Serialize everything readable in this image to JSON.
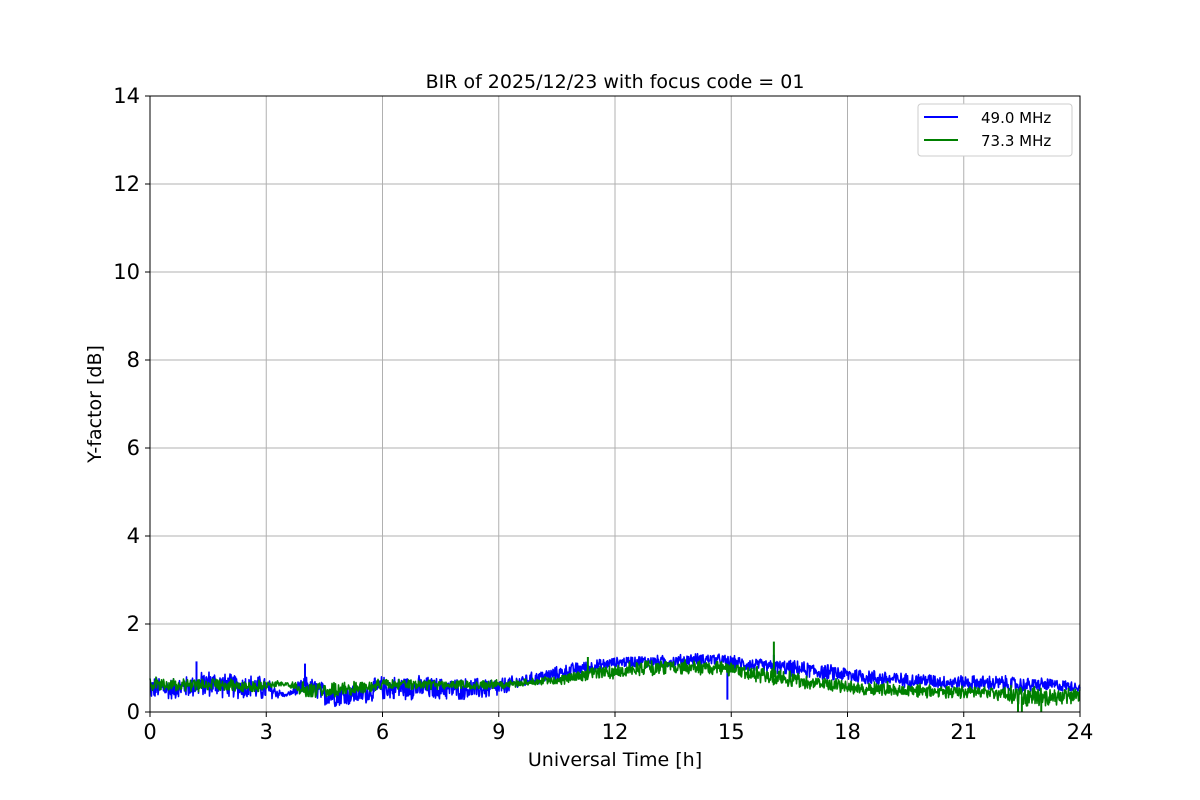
{
  "chart_data": {
    "type": "line",
    "title": "BIR of 2025/12/23 with focus code = 01",
    "xlabel": "Universal Time [h]",
    "ylabel": "Y-factor [dB]",
    "xlim": [
      0,
      24
    ],
    "ylim": [
      0,
      14
    ],
    "xticks": [
      0,
      3,
      6,
      9,
      12,
      15,
      18,
      21,
      24
    ],
    "yticks": [
      0,
      2,
      4,
      6,
      8,
      10,
      12,
      14
    ],
    "grid": true,
    "legend_position": "top-right",
    "series": [
      {
        "name": "49.0 MHz",
        "color": "#0000ff",
        "x": [
          0,
          0.5,
          1,
          1.5,
          2,
          2.5,
          3,
          3.5,
          4,
          4.5,
          5,
          5.5,
          6,
          6.5,
          7,
          7.5,
          8,
          8.5,
          9,
          9.5,
          10,
          10.5,
          11,
          11.5,
          12,
          12.5,
          13,
          13.5,
          14,
          14.5,
          15,
          15.5,
          16,
          16.5,
          17,
          17.5,
          18,
          18.5,
          19,
          19.5,
          20,
          20.5,
          21,
          21.5,
          22,
          22.5,
          23,
          23.5,
          24
        ],
        "y_min": [
          0.25,
          0.25,
          0.3,
          0.3,
          0.3,
          0.25,
          0.2,
          0.35,
          0.35,
          0.1,
          0.1,
          0.15,
          0.25,
          0.25,
          0.25,
          0.25,
          0.25,
          0.25,
          0.3,
          0.5,
          0.6,
          0.7,
          0.8,
          0.9,
          1.0,
          1.0,
          1.0,
          1.0,
          1.05,
          1.05,
          0.95,
          0.9,
          0.85,
          0.8,
          0.75,
          0.7,
          0.65,
          0.6,
          0.55,
          0.55,
          0.55,
          0.5,
          0.5,
          0.45,
          0.45,
          0.4,
          0.45,
          0.45,
          0.45
        ],
        "y_max": [
          0.85,
          0.8,
          0.85,
          1.0,
          0.9,
          0.9,
          0.85,
          0.4,
          0.85,
          0.7,
          0.65,
          0.7,
          0.85,
          0.85,
          0.85,
          0.8,
          0.8,
          0.8,
          0.8,
          0.85,
          0.95,
          1.05,
          1.15,
          1.2,
          1.25,
          1.3,
          1.3,
          1.3,
          1.35,
          1.35,
          1.3,
          1.25,
          1.2,
          1.2,
          1.15,
          1.1,
          1.05,
          1.0,
          0.95,
          0.9,
          0.9,
          0.85,
          0.85,
          0.85,
          0.85,
          0.8,
          0.8,
          0.75,
          0.7
        ],
        "outliers": [
          [
            1.2,
            1.15
          ],
          [
            4.0,
            1.1
          ],
          [
            14.9,
            0.28
          ],
          [
            16.1,
            1.3
          ]
        ]
      },
      {
        "name": "73.3 MHz",
        "color": "#008000",
        "x": [
          0,
          0.5,
          1,
          1.5,
          2,
          2.5,
          3,
          3.5,
          4,
          4.5,
          5,
          5.5,
          6,
          6.5,
          7,
          7.5,
          8,
          8.5,
          9,
          9.5,
          10,
          10.5,
          11,
          11.5,
          12,
          12.5,
          13,
          13.5,
          14,
          14.5,
          15,
          15.5,
          16,
          16.5,
          17,
          17.5,
          18,
          18.5,
          19,
          19.5,
          20,
          20.5,
          21,
          21.5,
          22,
          22.5,
          23,
          23.5,
          24
        ],
        "y_min": [
          0.45,
          0.45,
          0.45,
          0.45,
          0.45,
          0.45,
          0.45,
          0.6,
          0.3,
          0.3,
          0.3,
          0.4,
          0.5,
          0.5,
          0.5,
          0.5,
          0.5,
          0.5,
          0.5,
          0.55,
          0.6,
          0.6,
          0.65,
          0.7,
          0.75,
          0.8,
          0.8,
          0.85,
          0.85,
          0.8,
          0.75,
          0.7,
          0.6,
          0.55,
          0.5,
          0.45,
          0.4,
          0.35,
          0.35,
          0.35,
          0.3,
          0.3,
          0.3,
          0.3,
          0.25,
          0.1,
          0.1,
          0.1,
          0.1
        ],
        "y_max": [
          0.8,
          0.8,
          0.8,
          0.8,
          0.75,
          0.75,
          0.75,
          0.7,
          0.7,
          0.7,
          0.7,
          0.75,
          0.75,
          0.75,
          0.75,
          0.75,
          0.75,
          0.75,
          0.75,
          0.75,
          0.8,
          0.85,
          0.95,
          1.05,
          1.1,
          1.15,
          1.2,
          1.2,
          1.2,
          1.2,
          1.15,
          1.05,
          1.0,
          0.95,
          0.85,
          0.8,
          0.75,
          0.7,
          0.7,
          0.65,
          0.65,
          0.65,
          0.6,
          0.6,
          0.6,
          0.6,
          0.6,
          0.55,
          0.55
        ],
        "outliers": [
          [
            11.3,
            1.25
          ],
          [
            16.1,
            1.6
          ],
          [
            22.4,
            0.0
          ],
          [
            22.5,
            0.0
          ],
          [
            23.0,
            0.0
          ]
        ]
      }
    ]
  }
}
